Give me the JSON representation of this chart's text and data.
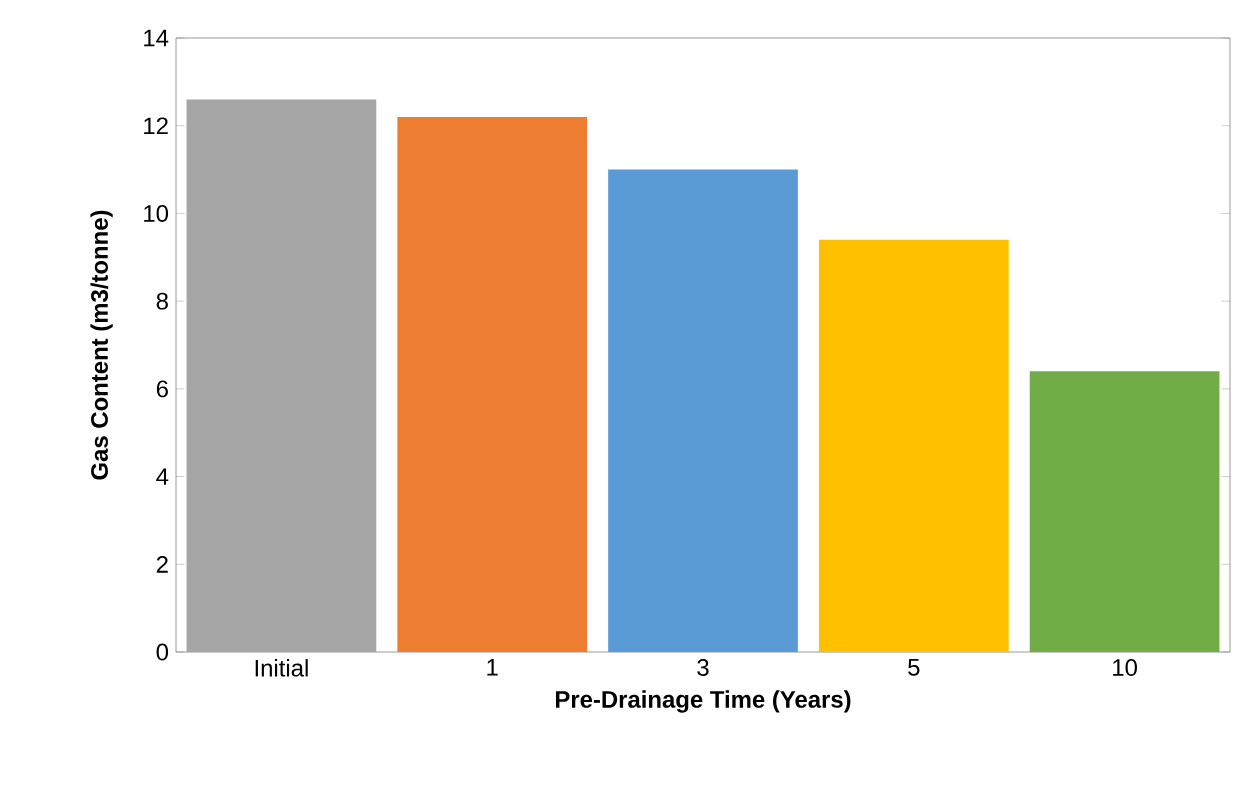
{
  "chart_data": {
    "type": "bar",
    "xlabel": "Pre-Drainage Time (Years)",
    "ylabel": "Gas Content (m3/tonne)",
    "categories": [
      "Initial",
      "1",
      "3",
      "5",
      "10"
    ],
    "values": [
      12.6,
      12.2,
      11.0,
      9.4,
      6.4
    ],
    "colors": [
      "#a5a5a5",
      "#ed7d31",
      "#5b9bd5",
      "#ffc000",
      "#70ad47"
    ],
    "ylim": [
      0,
      14
    ],
    "yticks": [
      0,
      2,
      4,
      6,
      8,
      10,
      12,
      14
    ]
  }
}
